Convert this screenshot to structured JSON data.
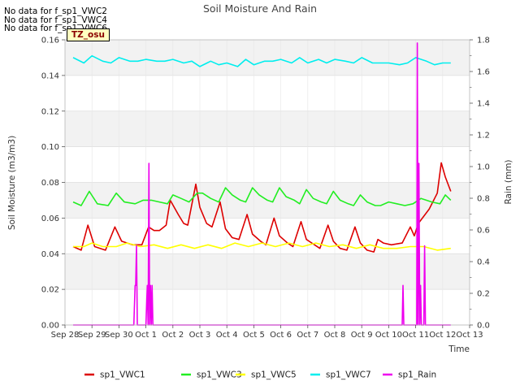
{
  "no_data_messages": [
    "No data for f_sp1_VWC2",
    "No data for f_sp1_VWC4",
    "No data for f_sp1_VWC6"
  ],
  "timezone_label": "TZ_osu",
  "chart_data": {
    "type": "line",
    "title": "Soil Moisture And Rain",
    "xlabel": "Time",
    "ylabel": "Soil Moisture (m3/m3)",
    "y2label": "Rain (mm)",
    "xticks": [
      "Sep 28",
      "Sep 29",
      "Sep 30",
      "Oct 1",
      "Oct 2",
      "Oct 3",
      "Oct 4",
      "Oct 5",
      "Oct 6",
      "Oct 7",
      "Oct 8",
      "Oct 9",
      "Oct 10",
      "Oct 11",
      "Oct 12",
      "Oct 13"
    ],
    "xlim": [
      0,
      15
    ],
    "ylim": [
      0,
      0.16
    ],
    "y2lim": [
      0,
      1.8
    ],
    "yticks": [
      "0.00",
      "0.02",
      "0.04",
      "0.06",
      "0.08",
      "0.10",
      "0.12",
      "0.14",
      "0.16"
    ],
    "y2ticks": [
      "0.0",
      "0.2",
      "0.4",
      "0.6",
      "0.8",
      "1.0",
      "1.2",
      "1.4",
      "1.6",
      "1.8"
    ],
    "grid": true,
    "legend_position": "bottom",
    "series": [
      {
        "name": "sp1_VWC1",
        "color": "#dd0000",
        "axis": "left",
        "x": [
          0.3,
          0.6,
          0.85,
          1.1,
          1.5,
          1.85,
          2.1,
          2.5,
          2.85,
          3.1,
          3.3,
          3.5,
          3.75,
          3.9,
          4.2,
          4.4,
          4.55,
          4.85,
          5.0,
          5.25,
          5.45,
          5.75,
          5.95,
          6.2,
          6.45,
          6.75,
          6.95,
          7.25,
          7.45,
          7.75,
          7.95,
          8.25,
          8.45,
          8.75,
          8.95,
          9.25,
          9.45,
          9.75,
          9.95,
          10.2,
          10.45,
          10.75,
          10.95,
          11.2,
          11.45,
          11.6,
          11.8,
          12.1,
          12.5,
          12.8,
          12.95,
          13.1,
          13.5,
          13.8,
          13.95,
          14.1,
          14.3
        ],
        "y": [
          0.044,
          0.042,
          0.056,
          0.044,
          0.042,
          0.055,
          0.047,
          0.045,
          0.045,
          0.055,
          0.053,
          0.053,
          0.056,
          0.07,
          0.062,
          0.057,
          0.056,
          0.079,
          0.066,
          0.057,
          0.055,
          0.069,
          0.054,
          0.049,
          0.048,
          0.062,
          0.051,
          0.047,
          0.045,
          0.06,
          0.05,
          0.046,
          0.044,
          0.058,
          0.048,
          0.045,
          0.043,
          0.056,
          0.047,
          0.043,
          0.042,
          0.055,
          0.046,
          0.042,
          0.041,
          0.048,
          0.046,
          0.045,
          0.046,
          0.055,
          0.05,
          0.057,
          0.065,
          0.074,
          0.091,
          0.083,
          0.075
        ]
      },
      {
        "name": "sp1_VWC3",
        "color": "#22ee22",
        "axis": "left",
        "x": [
          0.3,
          0.6,
          0.9,
          1.2,
          1.6,
          1.9,
          2.2,
          2.6,
          2.9,
          3.2,
          3.5,
          3.8,
          4.0,
          4.3,
          4.6,
          4.9,
          5.1,
          5.4,
          5.7,
          5.95,
          6.2,
          6.5,
          6.7,
          6.95,
          7.2,
          7.5,
          7.7,
          7.95,
          8.2,
          8.5,
          8.7,
          8.95,
          9.2,
          9.5,
          9.7,
          9.95,
          10.2,
          10.5,
          10.7,
          10.95,
          11.2,
          11.5,
          11.7,
          12.0,
          12.3,
          12.6,
          12.9,
          13.2,
          13.6,
          13.9,
          14.1,
          14.3
        ],
        "y": [
          0.069,
          0.067,
          0.075,
          0.068,
          0.067,
          0.074,
          0.069,
          0.068,
          0.07,
          0.07,
          0.069,
          0.068,
          0.073,
          0.071,
          0.069,
          0.074,
          0.074,
          0.071,
          0.069,
          0.077,
          0.073,
          0.07,
          0.069,
          0.077,
          0.073,
          0.07,
          0.069,
          0.077,
          0.072,
          0.07,
          0.068,
          0.076,
          0.071,
          0.069,
          0.068,
          0.075,
          0.07,
          0.068,
          0.067,
          0.073,
          0.069,
          0.067,
          0.067,
          0.069,
          0.068,
          0.067,
          0.068,
          0.071,
          0.069,
          0.068,
          0.073,
          0.07
        ]
      },
      {
        "name": "sp1_VWC5",
        "color": "#ffff00",
        "axis": "left",
        "x": [
          0.3,
          0.7,
          1.0,
          1.4,
          1.9,
          2.3,
          2.8,
          3.3,
          3.8,
          4.3,
          4.8,
          5.3,
          5.8,
          6.3,
          6.8,
          7.3,
          7.8,
          8.3,
          8.8,
          9.3,
          9.8,
          10.3,
          10.8,
          11.3,
          11.8,
          12.3,
          12.8,
          13.3,
          13.8,
          14.3
        ],
        "y": [
          0.044,
          0.044,
          0.046,
          0.044,
          0.044,
          0.046,
          0.044,
          0.045,
          0.043,
          0.045,
          0.043,
          0.045,
          0.043,
          0.046,
          0.044,
          0.046,
          0.044,
          0.046,
          0.044,
          0.046,
          0.044,
          0.045,
          0.043,
          0.045,
          0.043,
          0.043,
          0.044,
          0.044,
          0.042,
          0.043
        ]
      },
      {
        "name": "sp1_VWC7",
        "color": "#00eeee",
        "axis": "left",
        "x": [
          0.3,
          0.7,
          1.0,
          1.4,
          1.7,
          2.0,
          2.4,
          2.7,
          3.0,
          3.4,
          3.7,
          4.0,
          4.4,
          4.7,
          5.0,
          5.4,
          5.7,
          6.0,
          6.4,
          6.7,
          7.0,
          7.4,
          7.7,
          8.0,
          8.4,
          8.7,
          9.0,
          9.4,
          9.7,
          10.0,
          10.4,
          10.7,
          11.0,
          11.4,
          11.7,
          12.0,
          12.4,
          12.7,
          13.0,
          13.4,
          13.7,
          14.0,
          14.3
        ],
        "y": [
          0.15,
          0.147,
          0.151,
          0.148,
          0.147,
          0.15,
          0.148,
          0.148,
          0.149,
          0.148,
          0.148,
          0.149,
          0.147,
          0.148,
          0.145,
          0.148,
          0.146,
          0.147,
          0.145,
          0.149,
          0.146,
          0.148,
          0.148,
          0.149,
          0.147,
          0.15,
          0.147,
          0.149,
          0.147,
          0.149,
          0.148,
          0.147,
          0.15,
          0.147,
          0.147,
          0.147,
          0.146,
          0.147,
          0.15,
          0.148,
          0.146,
          0.147,
          0.147
        ]
      },
      {
        "name": "sp1_Rain",
        "color": "#ee00ee",
        "axis": "right",
        "x": [
          0.3,
          2.55,
          2.6,
          2.62,
          2.65,
          2.68,
          2.7,
          3.0,
          3.05,
          3.08,
          3.11,
          3.14,
          3.17,
          3.2,
          3.23,
          3.26,
          12.5,
          12.53,
          12.56,
          12.59,
          13.0,
          13.04,
          13.06,
          13.09,
          13.12,
          13.15,
          13.18,
          13.21,
          13.3,
          13.33,
          13.36,
          13.39,
          14.3
        ],
        "y": [
          0,
          0,
          0.25,
          0.25,
          0.5,
          0,
          0,
          0,
          0.25,
          0,
          1.02,
          0,
          0.25,
          0,
          0.25,
          0,
          0,
          0.25,
          0,
          0,
          0,
          0,
          1.78,
          0,
          1.02,
          0,
          0.25,
          0,
          0,
          0.5,
          0,
          0,
          0
        ]
      }
    ]
  }
}
